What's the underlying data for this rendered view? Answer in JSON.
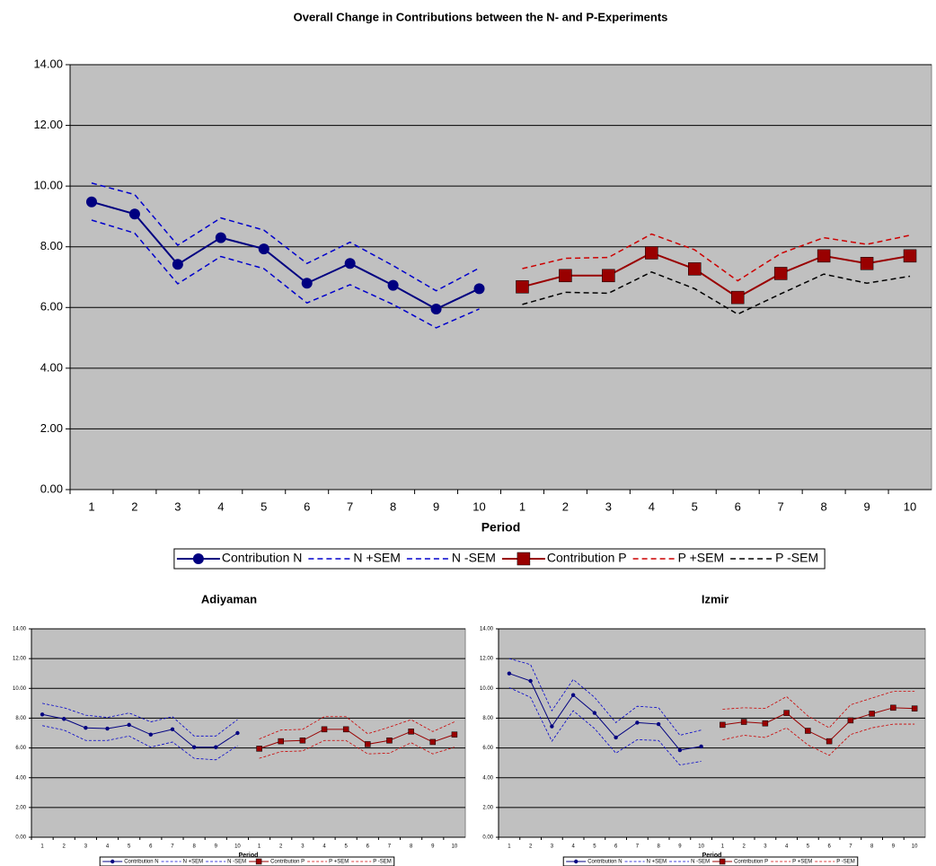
{
  "chart_data": [
    {
      "type": "line",
      "title": "Overall Change in Contributions between the N- and P-Experiments",
      "x_label": "Period",
      "categories": [
        1,
        2,
        3,
        4,
        5,
        6,
        7,
        8,
        9,
        10,
        1,
        2,
        3,
        4,
        5,
        6,
        7,
        8,
        9,
        10
      ],
      "ylim": [
        0,
        14
      ],
      "yticks": [
        {
          "value": 0,
          "label": "0.00"
        },
        {
          "value": 2,
          "label": "2.00"
        },
        {
          "value": 4,
          "label": "4.00"
        },
        {
          "value": 6,
          "label": "6.00"
        },
        {
          "value": 8,
          "label": "8.00"
        },
        {
          "value": 10,
          "label": "10.00"
        },
        {
          "value": 12,
          "label": "12.00"
        },
        {
          "value": 14,
          "label": "14.00"
        }
      ],
      "grid": true,
      "background": "#c0c0c0",
      "legend": "bottom",
      "series": [
        {
          "name": "Contribution N",
          "color": "#000080",
          "marker": "circle",
          "dashed": false,
          "values": [
            9.48,
            9.08,
            7.42,
            8.3,
            7.93,
            6.8,
            7.45,
            6.73,
            5.95,
            6.62,
            null,
            null,
            null,
            null,
            null,
            null,
            null,
            null,
            null,
            null
          ]
        },
        {
          "name": "N +SEM",
          "color": "#0000cc",
          "marker": "none",
          "dashed": true,
          "values": [
            10.1,
            9.72,
            8.05,
            8.95,
            8.55,
            7.45,
            8.15,
            7.38,
            6.55,
            7.3,
            null,
            null,
            null,
            null,
            null,
            null,
            null,
            null,
            null,
            null
          ]
        },
        {
          "name": "N -SEM",
          "color": "#0000cc",
          "marker": "none",
          "dashed": true,
          "values": [
            8.88,
            8.45,
            6.78,
            7.68,
            7.28,
            6.15,
            6.75,
            6.1,
            5.33,
            5.95,
            null,
            null,
            null,
            null,
            null,
            null,
            null,
            null,
            null,
            null
          ]
        },
        {
          "name": "Contribution P",
          "color": "#990000",
          "marker": "square",
          "dashed": false,
          "values": [
            null,
            null,
            null,
            null,
            null,
            null,
            null,
            null,
            null,
            null,
            6.68,
            7.05,
            7.05,
            7.8,
            7.27,
            6.33,
            7.12,
            7.7,
            7.45,
            7.7
          ]
        },
        {
          "name": "P +SEM",
          "color": "#cc0000",
          "marker": "none",
          "dashed": true,
          "values": [
            null,
            null,
            null,
            null,
            null,
            null,
            null,
            null,
            null,
            null,
            7.28,
            7.62,
            7.65,
            8.42,
            7.9,
            6.88,
            7.78,
            8.3,
            8.08,
            8.38
          ]
        },
        {
          "name": "P -SEM",
          "color": "#000000",
          "marker": "none",
          "dashed": true,
          "values": [
            null,
            null,
            null,
            null,
            null,
            null,
            null,
            null,
            null,
            null,
            6.1,
            6.5,
            6.47,
            7.17,
            6.62,
            5.78,
            6.45,
            7.1,
            6.8,
            7.03
          ]
        }
      ]
    },
    {
      "type": "line",
      "title": "Adiyaman",
      "x_label": "Period",
      "categories": [
        1,
        2,
        3,
        4,
        5,
        6,
        7,
        8,
        9,
        10,
        1,
        2,
        3,
        4,
        5,
        6,
        7,
        8,
        9,
        10
      ],
      "ylim": [
        0,
        14
      ],
      "yticks": [
        {
          "value": 0,
          "label": "0.00"
        },
        {
          "value": 2,
          "label": "2.00"
        },
        {
          "value": 4,
          "label": "4.00"
        },
        {
          "value": 6,
          "label": "6.00"
        },
        {
          "value": 8,
          "label": "8.00"
        },
        {
          "value": 10,
          "label": "10.00"
        },
        {
          "value": 12,
          "label": "12.00"
        },
        {
          "value": 14,
          "label": "14.00"
        }
      ],
      "grid": true,
      "background": "#c0c0c0",
      "legend": "bottom",
      "series": [
        {
          "name": "Contribution N",
          "color": "#000080",
          "marker": "circle",
          "dashed": false,
          "values": [
            8.25,
            7.95,
            7.35,
            7.3,
            7.55,
            6.9,
            7.25,
            6.05,
            6.05,
            7.0,
            null,
            null,
            null,
            null,
            null,
            null,
            null,
            null,
            null,
            null
          ]
        },
        {
          "name": "N +SEM",
          "color": "#0000cc",
          "marker": "none",
          "dashed": true,
          "values": [
            9.0,
            8.7,
            8.2,
            8.05,
            8.35,
            7.75,
            8.1,
            6.8,
            6.8,
            7.9,
            null,
            null,
            null,
            null,
            null,
            null,
            null,
            null,
            null,
            null
          ]
        },
        {
          "name": "N -SEM",
          "color": "#0000cc",
          "marker": "none",
          "dashed": true,
          "values": [
            7.5,
            7.2,
            6.5,
            6.5,
            6.8,
            6.05,
            6.4,
            5.3,
            5.2,
            6.15,
            null,
            null,
            null,
            null,
            null,
            null,
            null,
            null,
            null,
            null
          ]
        },
        {
          "name": "Contribution P",
          "color": "#990000",
          "marker": "square",
          "dashed": false,
          "values": [
            null,
            null,
            null,
            null,
            null,
            null,
            null,
            null,
            null,
            null,
            5.95,
            6.45,
            6.5,
            7.25,
            7.25,
            6.25,
            6.5,
            7.1,
            6.4,
            6.9
          ]
        },
        {
          "name": "P +SEM",
          "color": "#cc0000",
          "marker": "none",
          "dashed": true,
          "values": [
            null,
            null,
            null,
            null,
            null,
            null,
            null,
            null,
            null,
            null,
            6.6,
            7.2,
            7.25,
            8.1,
            8.1,
            6.95,
            7.4,
            7.9,
            7.1,
            7.75
          ]
        },
        {
          "name": "P -SEM",
          "color": "#cc0000",
          "marker": "none",
          "dashed": true,
          "values": [
            null,
            null,
            null,
            null,
            null,
            null,
            null,
            null,
            null,
            null,
            5.3,
            5.75,
            5.8,
            6.5,
            6.5,
            5.6,
            5.65,
            6.35,
            5.6,
            6.05
          ]
        }
      ]
    },
    {
      "type": "line",
      "title": "Izmir",
      "x_label": "Period",
      "categories": [
        1,
        2,
        3,
        4,
        5,
        6,
        7,
        8,
        9,
        10,
        1,
        2,
        3,
        4,
        5,
        6,
        7,
        8,
        9,
        10
      ],
      "ylim": [
        0,
        14
      ],
      "yticks": [
        {
          "value": 0,
          "label": "0.00"
        },
        {
          "value": 2,
          "label": "2.00"
        },
        {
          "value": 4,
          "label": "4.00"
        },
        {
          "value": 6,
          "label": "6.00"
        },
        {
          "value": 8,
          "label": "8.00"
        },
        {
          "value": 10,
          "label": "10.00"
        },
        {
          "value": 12,
          "label": "12.00"
        },
        {
          "value": 14,
          "label": "14.00"
        }
      ],
      "grid": true,
      "background": "#c0c0c0",
      "legend": "bottom",
      "series": [
        {
          "name": "Contribution N",
          "color": "#000080",
          "marker": "circle",
          "dashed": false,
          "values": [
            11.0,
            10.5,
            7.45,
            9.55,
            8.35,
            6.7,
            7.7,
            7.6,
            5.85,
            6.1,
            null,
            null,
            null,
            null,
            null,
            null,
            null,
            null,
            null,
            null
          ]
        },
        {
          "name": "N +SEM",
          "color": "#0000cc",
          "marker": "none",
          "dashed": true,
          "values": [
            12.0,
            11.6,
            8.5,
            10.6,
            9.4,
            7.7,
            8.8,
            8.7,
            6.85,
            7.2,
            null,
            null,
            null,
            null,
            null,
            null,
            null,
            null,
            null,
            null
          ]
        },
        {
          "name": "N -SEM",
          "color": "#0000cc",
          "marker": "none",
          "dashed": true,
          "values": [
            10.05,
            9.4,
            6.45,
            8.5,
            7.3,
            5.65,
            6.55,
            6.5,
            4.85,
            5.1,
            null,
            null,
            null,
            null,
            null,
            null,
            null,
            null,
            null,
            null
          ]
        },
        {
          "name": "Contribution P",
          "color": "#990000",
          "marker": "square",
          "dashed": false,
          "values": [
            null,
            null,
            null,
            null,
            null,
            null,
            null,
            null,
            null,
            null,
            7.55,
            7.75,
            7.65,
            8.35,
            7.15,
            6.45,
            7.85,
            8.3,
            8.7,
            8.65
          ]
        },
        {
          "name": "P +SEM",
          "color": "#cc0000",
          "marker": "none",
          "dashed": true,
          "values": [
            null,
            null,
            null,
            null,
            null,
            null,
            null,
            null,
            null,
            null,
            8.6,
            8.7,
            8.65,
            9.45,
            8.15,
            7.35,
            8.9,
            9.35,
            9.8,
            9.8
          ]
        },
        {
          "name": "P -SEM",
          "color": "#cc0000",
          "marker": "none",
          "dashed": true,
          "values": [
            null,
            null,
            null,
            null,
            null,
            null,
            null,
            null,
            null,
            null,
            6.55,
            6.85,
            6.7,
            7.35,
            6.2,
            5.5,
            6.9,
            7.35,
            7.6,
            7.6
          ]
        }
      ]
    }
  ]
}
